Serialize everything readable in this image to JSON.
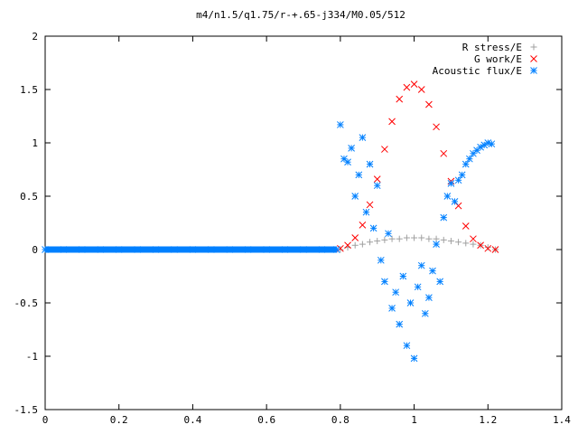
{
  "chart_data": {
    "type": "scatter",
    "title": "m4/n1.5/q1.75/r-+.65-j334/M0.05/512",
    "xlabel": "",
    "ylabel": "",
    "xlim": [
      0,
      1.4
    ],
    "ylim": [
      -1.5,
      2
    ],
    "x_ticks": [
      "0",
      "0.2",
      "0.4",
      "0.6",
      "0.8",
      "1",
      "1.2",
      "1.4"
    ],
    "y_ticks": [
      "-1.5",
      "-1",
      "-0.5",
      "0",
      "0.5",
      "1",
      "1.5",
      "2"
    ],
    "grid": false,
    "legend_position": "top-right",
    "series": [
      {
        "name": "R stress/E",
        "marker": "plus",
        "color": "#a0a0a0",
        "x": [
          0.8,
          0.82,
          0.84,
          0.86,
          0.88,
          0.9,
          0.92,
          0.94,
          0.96,
          0.98,
          1.0,
          1.02,
          1.04,
          1.06,
          1.08,
          1.1,
          1.12,
          1.14,
          1.16,
          1.18,
          1.2,
          1.22
        ],
        "y": [
          0.0,
          0.02,
          0.04,
          0.05,
          0.07,
          0.08,
          0.09,
          0.1,
          0.1,
          0.11,
          0.11,
          0.11,
          0.1,
          0.1,
          0.09,
          0.08,
          0.07,
          0.06,
          0.05,
          0.04,
          0.02,
          0.0
        ]
      },
      {
        "name": "G work/E",
        "marker": "cross",
        "color": "#ff0000",
        "x": [
          0.8,
          0.82,
          0.84,
          0.86,
          0.88,
          0.9,
          0.92,
          0.94,
          0.96,
          0.98,
          1.0,
          1.02,
          1.04,
          1.06,
          1.08,
          1.1,
          1.12,
          1.14,
          1.16,
          1.18,
          1.2,
          1.22
        ],
        "y": [
          0.01,
          0.04,
          0.11,
          0.23,
          0.42,
          0.66,
          0.94,
          1.2,
          1.41,
          1.52,
          1.55,
          1.5,
          1.36,
          1.15,
          0.9,
          0.64,
          0.41,
          0.22,
          0.1,
          0.04,
          0.01,
          0.0
        ]
      },
      {
        "name": "Acoustic flux/E",
        "marker": "star",
        "color": "#0080ff",
        "x": [
          0.0,
          0.05,
          0.1,
          0.15,
          0.2,
          0.25,
          0.3,
          0.35,
          0.4,
          0.45,
          0.5,
          0.55,
          0.6,
          0.65,
          0.7,
          0.75,
          0.79,
          0.8,
          0.81,
          0.82,
          0.83,
          0.84,
          0.85,
          0.86,
          0.87,
          0.88,
          0.89,
          0.9,
          0.91,
          0.92,
          0.93,
          0.94,
          0.95,
          0.96,
          0.97,
          0.98,
          0.99,
          1.0,
          1.01,
          1.02,
          1.03,
          1.04,
          1.05,
          1.06,
          1.07,
          1.08,
          1.09,
          1.1,
          1.11,
          1.12,
          1.13,
          1.14,
          1.15,
          1.16,
          1.17,
          1.18,
          1.19,
          1.2,
          1.21
        ],
        "y": [
          0.0,
          0.0,
          0.0,
          0.0,
          0.0,
          0.0,
          0.0,
          0.0,
          0.0,
          0.0,
          0.0,
          0.0,
          0.0,
          0.0,
          0.0,
          0.0,
          0.0,
          1.17,
          0.85,
          0.82,
          0.95,
          0.5,
          0.7,
          1.05,
          0.35,
          0.8,
          0.2,
          0.6,
          -0.1,
          -0.3,
          0.15,
          -0.55,
          -0.4,
          -0.7,
          -0.25,
          -0.9,
          -0.5,
          -1.02,
          -0.35,
          -0.15,
          -0.6,
          -0.45,
          -0.2,
          0.05,
          -0.3,
          0.3,
          0.5,
          0.62,
          0.45,
          0.65,
          0.7,
          0.8,
          0.85,
          0.9,
          0.93,
          0.96,
          0.98,
          1.0,
          0.99
        ]
      }
    ]
  }
}
